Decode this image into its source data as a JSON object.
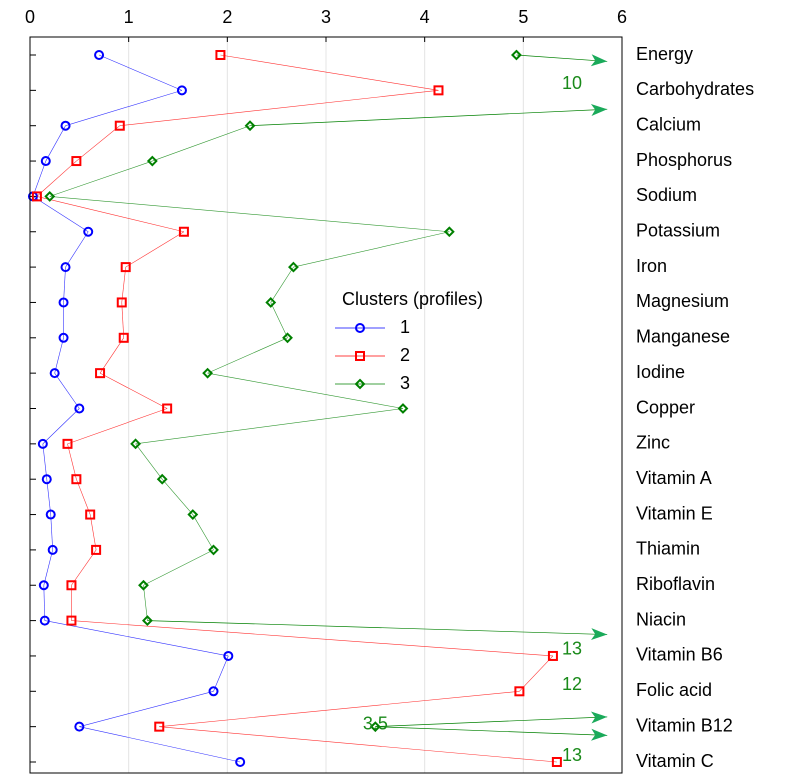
{
  "chart_data": {
    "type": "line",
    "categories": [
      "Energy",
      "Carbohydrates",
      "Calcium",
      "Phosphorus",
      "Sodium",
      "Potassium",
      "Iron",
      "Magnesium",
      "Manganese",
      "Iodine",
      "Copper",
      "Zinc",
      "Vitamin A",
      "Vitamin E",
      "Thiamin",
      "Riboflavin",
      "Niacin",
      "Vitamin B6",
      "Folic acid",
      "Vitamin B12",
      "Vitamin C"
    ],
    "series": [
      {
        "name": "1",
        "color": "#0000ff",
        "marker": "circle",
        "values": [
          0.7,
          1.54,
          0.36,
          0.16,
          0.03,
          0.59,
          0.36,
          0.34,
          0.34,
          0.25,
          0.5,
          0.13,
          0.17,
          0.21,
          0.23,
          0.14,
          0.15,
          2.01,
          1.86,
          0.5,
          2.13
        ]
      },
      {
        "name": "2",
        "color": "#ff0000",
        "marker": "square",
        "values": [
          1.93,
          4.14,
          0.91,
          0.47,
          0.07,
          1.56,
          0.97,
          0.93,
          0.95,
          0.71,
          1.39,
          0.38,
          0.47,
          0.61,
          0.67,
          0.42,
          0.42,
          5.3,
          4.96,
          1.31,
          5.34
        ]
      },
      {
        "name": "3",
        "color": "#008000",
        "marker": "diamond",
        "values": [
          4.93,
          10,
          2.23,
          1.24,
          0.2,
          4.25,
          2.67,
          2.44,
          2.61,
          1.8,
          3.78,
          1.07,
          1.34,
          1.65,
          1.86,
          1.15,
          1.19,
          13,
          12,
          3.5,
          13
        ]
      }
    ],
    "legend_title": "Clusters (profiles)",
    "xlim": [
      0,
      6
    ],
    "xticks": [
      0,
      1,
      2,
      3,
      4,
      5,
      6
    ],
    "grid": true
  }
}
